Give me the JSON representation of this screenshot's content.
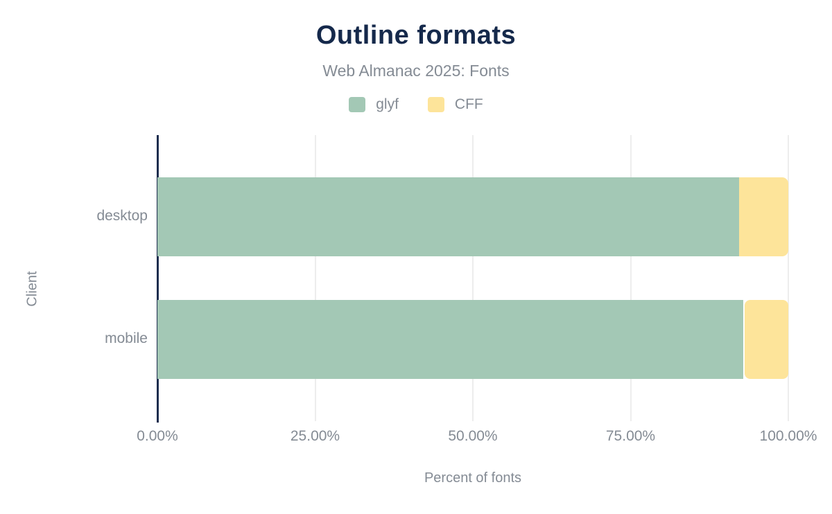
{
  "chart_data": {
    "type": "bar",
    "orientation": "horizontal",
    "stacked": true,
    "title": "Outline formats",
    "subtitle": "Web Almanac 2025: Fonts",
    "categories": [
      "desktop",
      "mobile"
    ],
    "series": [
      {
        "name": "glyf",
        "color": "#a3c8b5",
        "values": [
          92.2,
          92.9
        ]
      },
      {
        "name": "CFF",
        "color": "#fde49a",
        "values": [
          7.8,
          7.1
        ]
      }
    ],
    "xlabel": "Percent of fonts",
    "ylabel": "Client",
    "xlim": [
      0,
      100
    ],
    "xticks": [
      "0.00%",
      "25.00%",
      "50.00%",
      "75.00%",
      "100.00%"
    ],
    "xtick_values": [
      0,
      25,
      50,
      75,
      100
    ],
    "grid": "vertical",
    "legend_position": "top",
    "colors": {
      "title": "#15294b",
      "text": "#848b94",
      "axis": "#1d2d4e",
      "grid": "#ededed"
    }
  }
}
